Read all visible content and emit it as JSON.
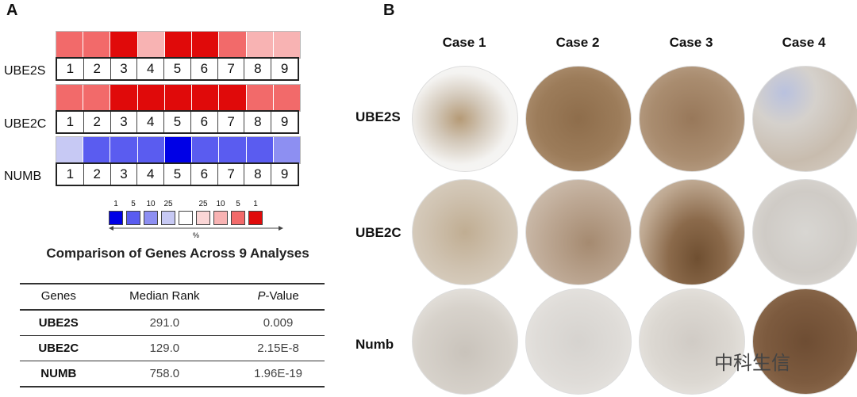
{
  "panel_a_label": "A",
  "panel_b_label": "B",
  "heatmap": {
    "rows": [
      {
        "gene": "UBE2S",
        "numbers": [
          "1",
          "2",
          "3",
          "4",
          "5",
          "6",
          "7",
          "8",
          "9"
        ],
        "colors": [
          "#f26a6a",
          "#f26a6a",
          "#e00a0a",
          "#f8b3b3",
          "#e00a0a",
          "#e00a0a",
          "#f26a6a",
          "#f8b3b3",
          "#f8b3b3"
        ]
      },
      {
        "gene": "UBE2C",
        "numbers": [
          "1",
          "2",
          "3",
          "4",
          "5",
          "6",
          "7",
          "8",
          "9"
        ],
        "colors": [
          "#f26a6a",
          "#f26a6a",
          "#e00a0a",
          "#e00a0a",
          "#e00a0a",
          "#e00a0a",
          "#e00a0a",
          "#f26a6a",
          "#f26a6a"
        ]
      },
      {
        "gene": "NUMB",
        "numbers": [
          "1",
          "2",
          "3",
          "4",
          "5",
          "6",
          "7",
          "8",
          "9"
        ],
        "colors": [
          "#c7c9f4",
          "#5a5cf0",
          "#5a5cf0",
          "#5a5cf0",
          "#0000e6",
          "#5a5cf0",
          "#5a5cf0",
          "#5a5cf0",
          "#8d8ff2"
        ]
      }
    ]
  },
  "legend": {
    "numbers": [
      "1",
      "5",
      "10",
      "25",
      "",
      "25",
      "10",
      "5",
      "1"
    ],
    "colors": [
      "#0000e6",
      "#5a5cf0",
      "#8d8ff2",
      "#c7c9f4",
      "#ffffff",
      "#fbd6d6",
      "#f8b3b3",
      "#f26a6a",
      "#e00a0a"
    ],
    "unit": "%"
  },
  "comparison_title": "Comparison of Genes Across 9 Analyses",
  "table": {
    "headers": [
      "Genes",
      "Median Rank",
      "P-Value"
    ],
    "rows": [
      {
        "gene": "UBE2S",
        "median_rank": "291.0",
        "p_value": "0.009"
      },
      {
        "gene": "UBE2C",
        "median_rank": "129.0",
        "p_value": "2.15E-8"
      },
      {
        "gene": "NUMB",
        "median_rank": "758.0",
        "p_value": "1.96E-19"
      }
    ]
  },
  "cases": [
    "Case 1",
    "Case 2",
    "Case 3",
    "Case 4"
  ],
  "stain_rows": [
    "UBE2S",
    "UBE2C",
    "Numb"
  ],
  "watermark": "中科生信"
}
